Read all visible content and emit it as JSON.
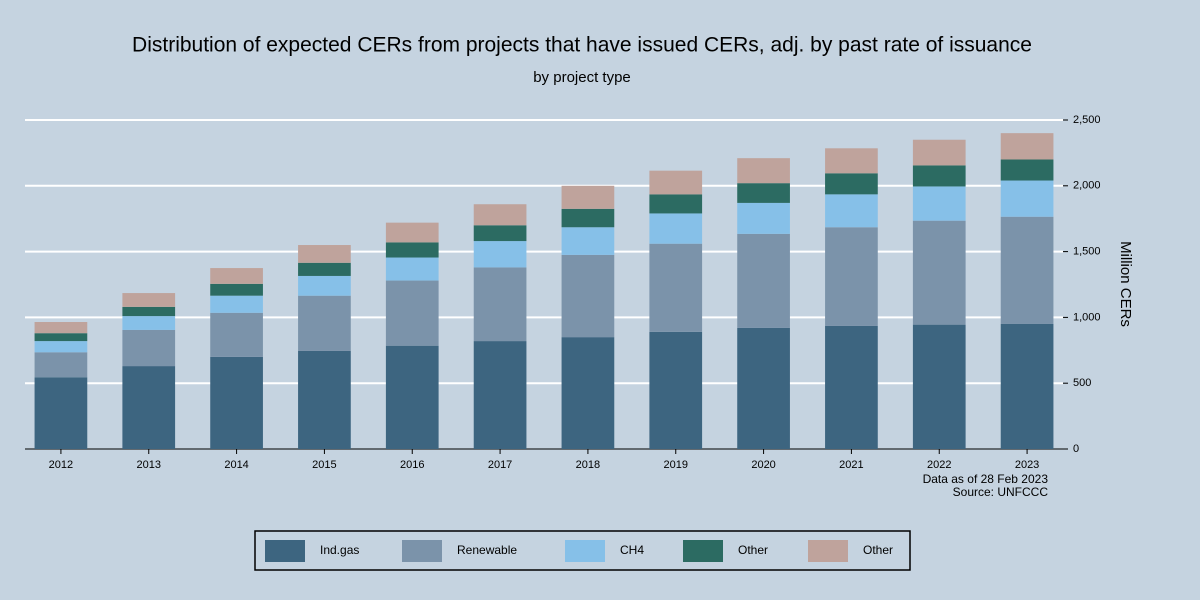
{
  "chart_data": {
    "type": "stacked_bar",
    "title": "Distribution of expected CERs from projects that have issued CERs, adj. by past rate of issuance",
    "subtitle": "by project type",
    "y_axis_label": "Million CERs",
    "notes": [
      "Data as of 28 Feb 2023",
      "Source: UNFCCC"
    ],
    "categories": [
      "2012",
      "2013",
      "2014",
      "2015",
      "2016",
      "2017",
      "2018",
      "2019",
      "2020",
      "2021",
      "2022",
      "2023"
    ],
    "series": [
      {
        "name": "Ind.gas",
        "color": "#3d6580",
        "values": [
          545,
          630,
          700,
          745,
          785,
          820,
          850,
          890,
          920,
          935,
          945,
          950
        ]
      },
      {
        "name": "Renewable",
        "color": "#7b93aa",
        "values": [
          190,
          275,
          335,
          420,
          495,
          560,
          625,
          670,
          715,
          750,
          790,
          815
        ]
      },
      {
        "name": "CH4",
        "color": "#86c0e8",
        "values": [
          85,
          105,
          130,
          150,
          175,
          200,
          210,
          230,
          235,
          250,
          260,
          275
        ]
      },
      {
        "name": "Other",
        "color": "#2c6b62",
        "values": [
          60,
          70,
          90,
          100,
          115,
          120,
          140,
          145,
          150,
          160,
          160,
          160
        ]
      },
      {
        "name": "Other",
        "color": "#bfa39c",
        "values": [
          85,
          105,
          120,
          135,
          150,
          160,
          175,
          180,
          190,
          190,
          195,
          200
        ]
      }
    ],
    "ylim": [
      0,
      2500
    ],
    "yticks": [
      0,
      500,
      {
        "value": 1000,
        "label": "1,000"
      },
      {
        "value": 1500,
        "label": "1,500"
      },
      {
        "value": 2000,
        "label": "2,000"
      },
      {
        "value": 2500,
        "label": "2,500"
      }
    ],
    "y_axis_side": "right",
    "grid": true
  }
}
